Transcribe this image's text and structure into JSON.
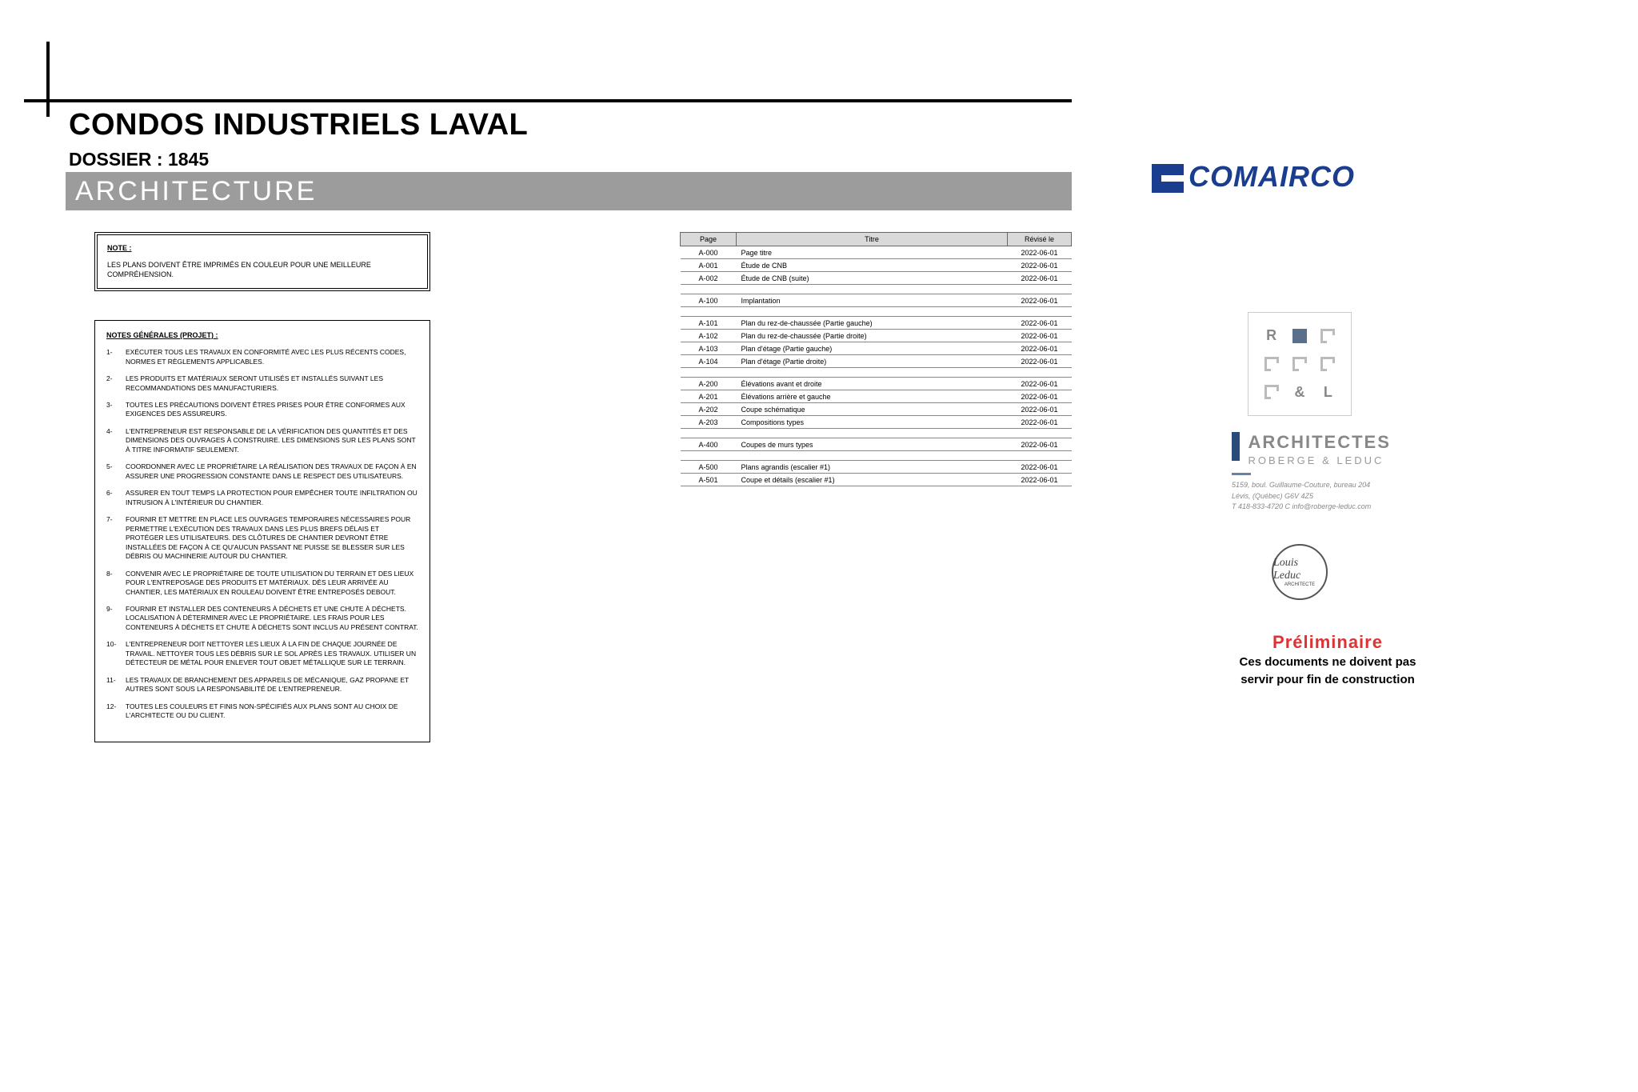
{
  "header": {
    "project_title": "CONDOS INDUSTRIELS LAVAL",
    "dossier_label": "DOSSIER : 1845",
    "discipline": "ARCHITECTURE"
  },
  "note_box": {
    "heading": "NOTE  :",
    "body": "LES PLANS DOIVENT ÊTRE IMPRIMÉS EN COULEUR POUR UNE MEILLEURE COMPRÉHENSION."
  },
  "general_notes": {
    "heading": "NOTES GÉNÉRALES (PROJET) :",
    "items": [
      "EXÉCUTER TOUS LES TRAVAUX EN CONFORMITÉ AVEC LES PLUS RÉCENTS CODES, NORMES ET RÈGLEMENTS APPLICABLES.",
      "LES PRODUITS ET MATÉRIAUX SERONT UTILISÉS ET INSTALLÉS SUIVANT LES RECOMMANDATIONS DES MANUFACTURIERS.",
      "TOUTES LES PRÉCAUTIONS DOIVENT ÊTRES PRISES POUR ÊTRE CONFORMES AUX EXIGENCES DES ASSUREURS.",
      "L'ENTREPRENEUR EST RESPONSABLE DE LA VÉRIFICATION DES QUANTITÉS ET DES DIMENSIONS DES OUVRAGES À CONSTRUIRE. LES DIMENSIONS SUR LES PLANS SONT À TITRE INFORMATIF SEULEMENT.",
      "COORDONNER AVEC LE PROPRIÉTAIRE LA RÉALISATION DES TRAVAUX DE FAÇON À EN ASSURER UNE PROGRESSION CONSTANTE DANS LE RESPECT DES UTILISATEURS.",
      "ASSURER EN TOUT TEMPS  LA PROTECTION POUR EMPÊCHER TOUTE INFILTRATION OU INTRUSION À L'INTÉRIEUR DU CHANTIER.",
      "FOURNIR ET METTRE EN PLACE LES OUVRAGES TEMPORAIRES NÉCESSAIRES POUR PERMETTRE L'EXÉCUTION DES TRAVAUX DANS LES PLUS BREFS DÉLAIS ET PROTÉGER LES UTILISATEURS. DES CLÔTURES DE CHANTIER DEVRONT ÊTRE INSTALLÉES DE FAÇON À CE QU'AUCUN PASSANT NE PUISSE SE BLESSER SUR LES DÉBRIS OU MACHINERIE AUTOUR DU CHANTIER.",
      "CONVENIR AVEC LE PROPRIÉTAIRE DE TOUTE UTILISATION DU TERRAIN ET DES LIEUX POUR L'ENTREPOSAGE DES PRODUITS ET MATÉRIAUX. DÈS LEUR ARRIVÉE AU CHANTIER, LES MATÉRIAUX EN ROULEAU DOIVENT ÊTRE ENTREPOSÉS DEBOUT.",
      "FOURNIR ET INSTALLER DES CONTENEURS À DÉCHETS ET UNE CHUTE À DÉCHETS. LOCALISATION À DÉTERMINER AVEC LE PROPRIÉTAIRE. LES FRAIS POUR LES CONTENEURS À DÉCHETS ET CHUTE À DÉCHETS SONT INCLUS AU PRÉSENT CONTRAT.",
      "L'ENTREPRENEUR DOIT NETTOYER LES LIEUX À LA FIN DE CHAQUE JOURNÉE DE TRAVAIL. NETTOYER TOUS LES DÉBRIS SUR LE SOL APRÈS LES TRAVAUX. UTILISER UN DÉTECTEUR DE MÉTAL POUR ENLEVER TOUT OBJET MÉTALLIQUE SUR LE TERRAIN.",
      "LES TRAVAUX DE BRANCHEMENT DES APPAREILS DE MÉCANIQUE, GAZ PROPANE ET AUTRES SONT SOUS LA RESPONSABILITÉ DE L'ENTREPRENEUR.",
      "TOUTES LES COULEURS ET FINIS NON-SPÉCIFIÉS AUX PLANS SONT AU CHOIX DE L'ARCHITECTE OU DU CLIENT."
    ]
  },
  "index_table": {
    "columns": [
      "Page",
      "Titre",
      "Révisé le"
    ],
    "groups": [
      [
        {
          "page": "A-000",
          "title": "Page titre",
          "rev": "2022-06-01"
        },
        {
          "page": "A-001",
          "title": "Étude de CNB",
          "rev": "2022-06-01"
        },
        {
          "page": "A-002",
          "title": "Étude de CNB (suite)",
          "rev": "2022-06-01"
        }
      ],
      [
        {
          "page": "A-100",
          "title": "Implantation",
          "rev": "2022-06-01"
        }
      ],
      [
        {
          "page": "A-101",
          "title": "Plan du rez-de-chaussée (Partie gauche)",
          "rev": "2022-06-01"
        },
        {
          "page": "A-102",
          "title": "Plan du rez-de-chaussée (Partie droite)",
          "rev": "2022-06-01"
        },
        {
          "page": "A-103",
          "title": "Plan d'étage (Partie gauche)",
          "rev": "2022-06-01"
        },
        {
          "page": "A-104",
          "title": "Plan d'étage (Partie droite)",
          "rev": "2022-06-01"
        }
      ],
      [
        {
          "page": "A-200",
          "title": "Élévations avant et droite",
          "rev": "2022-06-01"
        },
        {
          "page": "A-201",
          "title": "Élévations arrière et gauche",
          "rev": "2022-06-01"
        },
        {
          "page": "A-202",
          "title": "Coupe schématique",
          "rev": "2022-06-01"
        },
        {
          "page": "A-203",
          "title": "Compositions types",
          "rev": "2022-06-01"
        }
      ],
      [
        {
          "page": "A-400",
          "title": "Coupes de murs types",
          "rev": "2022-06-01"
        }
      ],
      [
        {
          "page": "A-500",
          "title": "Plans agrandis (escalier #1)",
          "rev": "2022-06-01"
        },
        {
          "page": "A-501",
          "title": "Coupe et détails (escalier #1)",
          "rev": "2022-06-01"
        }
      ]
    ]
  },
  "client_logo": {
    "text": "COMAIRCO",
    "color": "#1a3d8f"
  },
  "architect": {
    "firm_main": "ARCHITECTES",
    "firm_sub": "ROBERGE & LEDUC",
    "address1": "5159, boul. Guillaume-Couture, bureau 204",
    "address2": "Lévis, (Québec) G6V 4Z5",
    "contact": "T  418-833-4720   C  info@roberge-leduc.com",
    "stamp_sig": "Louis Leduc",
    "stamp_line": "ARCHITECTE"
  },
  "preliminary": {
    "word": "Préliminaire",
    "line1": "Ces documents ne doivent pas",
    "line2": "servir pour fin de construction"
  },
  "colors": {
    "banner_bg": "#9c9c9c",
    "brand_blue": "#1a3d8f",
    "arch_bar": "#2a4a7a",
    "prelim_red": "#d33333"
  }
}
